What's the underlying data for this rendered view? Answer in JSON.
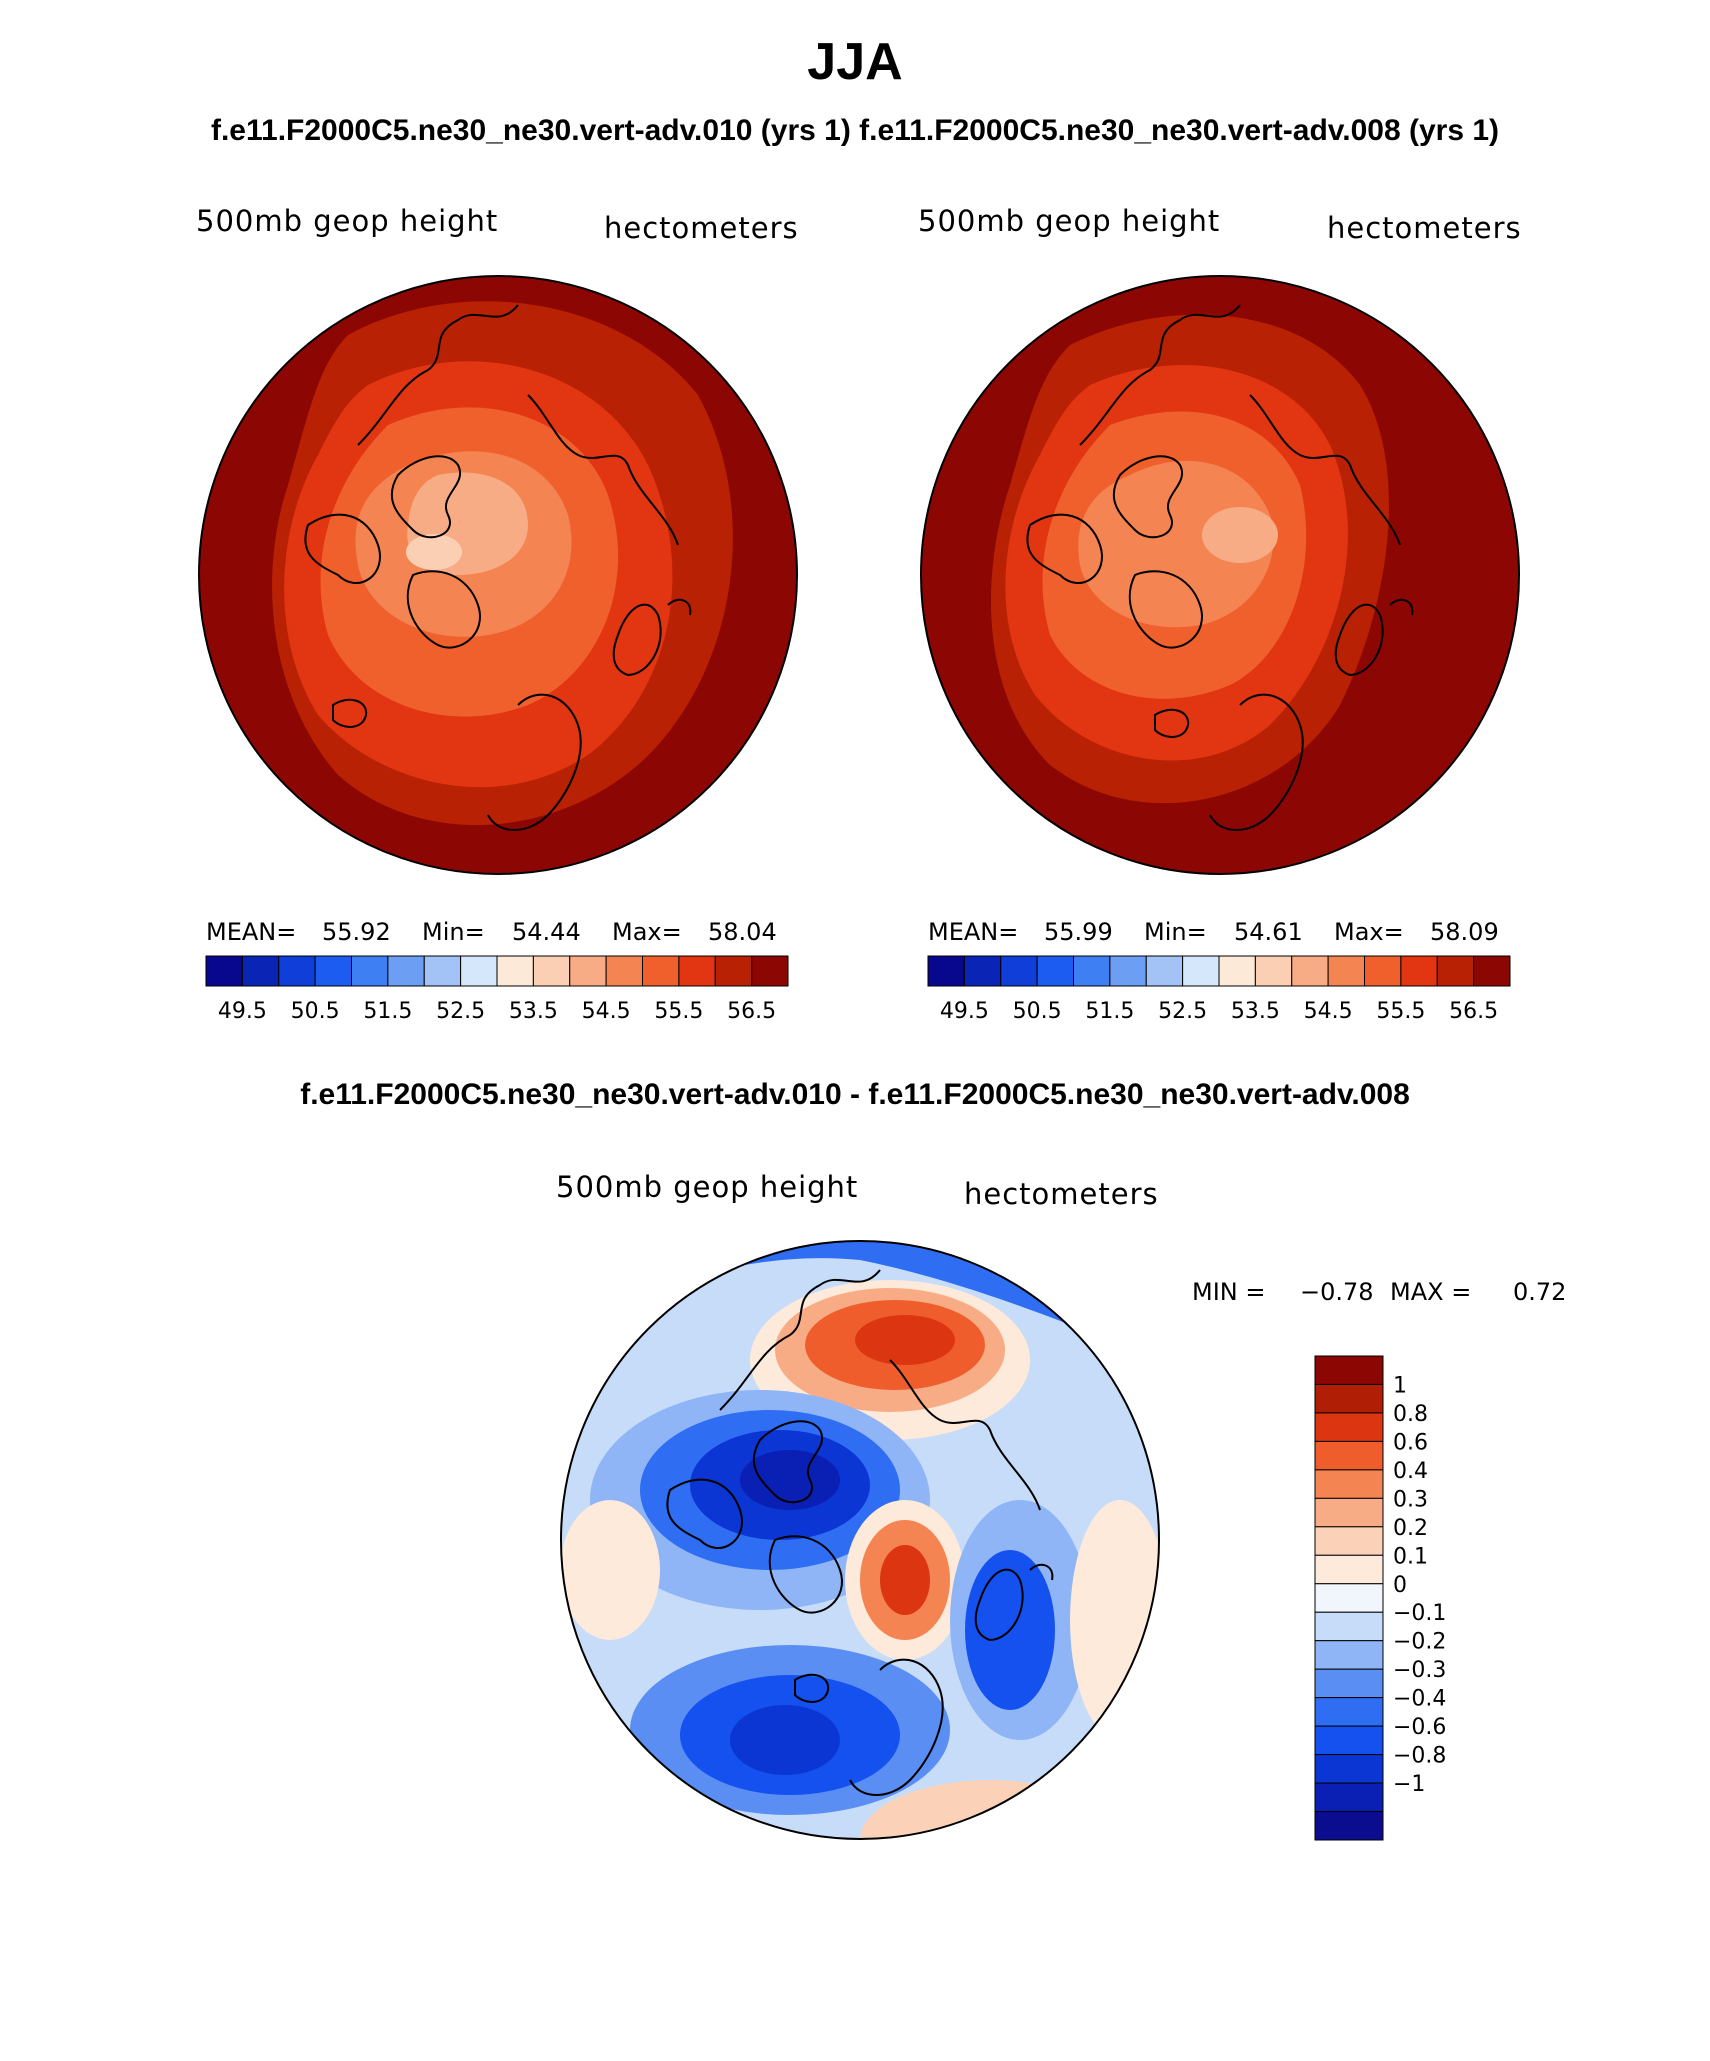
{
  "season": "JJA",
  "case_titles": "f.e11.F2000C5.ne30_ne30.vert-adv.010 (yrs 1) f.e11.F2000C5.ne30_ne30.vert-adv.008 (yrs 1)",
  "diff_title": "f.e11.F2000C5.ne30_ne30.vert-adv.010 - f.e11.F2000C5.ne30_ne30.vert-adv.008",
  "colors": {
    "main_scale": [
      "#08088f",
      "#0a25b5",
      "#0f3ed8",
      "#1d5cf0",
      "#3f7ff4",
      "#6c9ef4",
      "#a3c3f7",
      "#d4e7fb",
      "#fde9d7",
      "#fbcfb4",
      "#f8ac85",
      "#f48452",
      "#f0602c",
      "#e23512",
      "#b82103",
      "#8c0603"
    ],
    "diff_scale": [
      "#0b0d8f",
      "#0a1fb3",
      "#0b36d4",
      "#1451ef",
      "#2f6ef2",
      "#5a8ef3",
      "#8fb5f6",
      "#c7dcf9",
      "#f1f6fd",
      "#fdeadb",
      "#fbd1b8",
      "#f8ac85",
      "#f48452",
      "#ef5d2d",
      "#dc3512",
      "#b01e05",
      "#8c0603"
    ]
  },
  "panels": [
    {
      "variable": "500mb geop height",
      "units": "hectometers",
      "mean_label": "MEAN=",
      "mean": "55.92",
      "min_label": "Min=",
      "min": "54.44",
      "max_label": "Max=",
      "max": "58.04",
      "ticks": [
        "49.5",
        "50.5",
        "51.5",
        "52.5",
        "53.5",
        "54.5",
        "55.5",
        "56.5"
      ]
    },
    {
      "variable": "500mb geop height",
      "units": "hectometers",
      "mean_label": "MEAN=",
      "mean": "55.99",
      "min_label": "Min=",
      "min": "54.61",
      "max_label": "Max=",
      "max": "58.09",
      "ticks": [
        "49.5",
        "50.5",
        "51.5",
        "52.5",
        "53.5",
        "54.5",
        "55.5",
        "56.5"
      ]
    }
  ],
  "diff_panel": {
    "variable": "500mb geop height",
    "units": "hectometers",
    "min_label": "MIN =",
    "min": "−0.78",
    "max_label": "MAX =",
    "max": "0.72",
    "levels": [
      "1",
      "0.8",
      "0.6",
      "0.4",
      "0.3",
      "0.2",
      "0.1",
      "0",
      "−0.1",
      "−0.2",
      "−0.3",
      "−0.4",
      "−0.6",
      "−0.8",
      "−1"
    ]
  }
}
